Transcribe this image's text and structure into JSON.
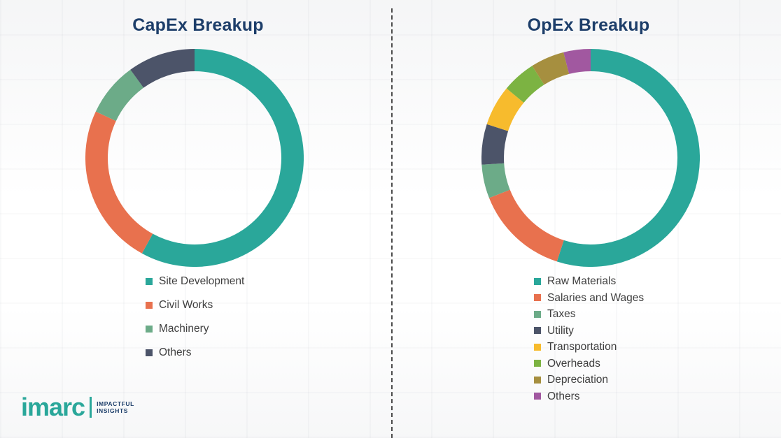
{
  "chart_data": [
    {
      "type": "pie",
      "subtype": "donut",
      "title": "CapEx Breakup",
      "categories": [
        "Site Development",
        "Civil Works",
        "Machinery",
        "Others"
      ],
      "values": [
        58,
        24,
        8,
        10
      ],
      "colors": [
        "#2aa79a",
        "#e8714e",
        "#6cab88",
        "#4c5469"
      ],
      "legend_position": "bottom",
      "data_labels": false
    },
    {
      "type": "pie",
      "subtype": "donut",
      "title": "OpEx Breakup",
      "categories": [
        "Raw Materials",
        "Salaries and Wages",
        "Taxes",
        "Utility",
        "Transportation",
        "Overheads",
        "Depreciation",
        "Others"
      ],
      "values": [
        55,
        14,
        5,
        6,
        6,
        5,
        5,
        4
      ],
      "colors": [
        "#2aa79a",
        "#e8714e",
        "#6cab88",
        "#4c5469",
        "#f7bb2d",
        "#7cb342",
        "#a68f3f",
        "#a158a0"
      ],
      "legend_position": "bottom",
      "data_labels": false
    }
  ],
  "logo": {
    "brand": "imarc",
    "tagline_line1": "IMPACTFUL",
    "tagline_line2": "INSIGHTS"
  },
  "styles": {
    "title_color": "#1d3e6a",
    "legend_text_color": "#3f3f3f",
    "brand_teal": "#2aa79a",
    "divider_color": "#4c4c4c"
  }
}
